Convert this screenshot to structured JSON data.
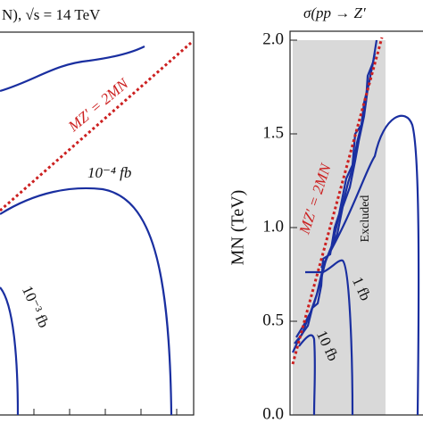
{
  "chart_data": [
    {
      "type": "contour",
      "title": "N),  √s = 14 TeV",
      "annotations": [
        "MZ′ = 2MN",
        "10⁻⁴ fb",
        "10⁻³ fb"
      ]
    },
    {
      "type": "contour",
      "title": "σ(pp → Z′",
      "ylabel": "MN (TeV)",
      "ylim": [
        0,
        2
      ],
      "yticks": [
        {
          "value": 0,
          "label": "0.0"
        },
        0.5,
        {
          "value": 1,
          "label": "1.0"
        },
        1.5,
        {
          "value": 2,
          "label": "2.0"
        }
      ],
      "annotations": [
        "MZ′ = 2MN",
        "Excluded",
        "1 fb",
        "10 fb"
      ]
    }
  ]
}
